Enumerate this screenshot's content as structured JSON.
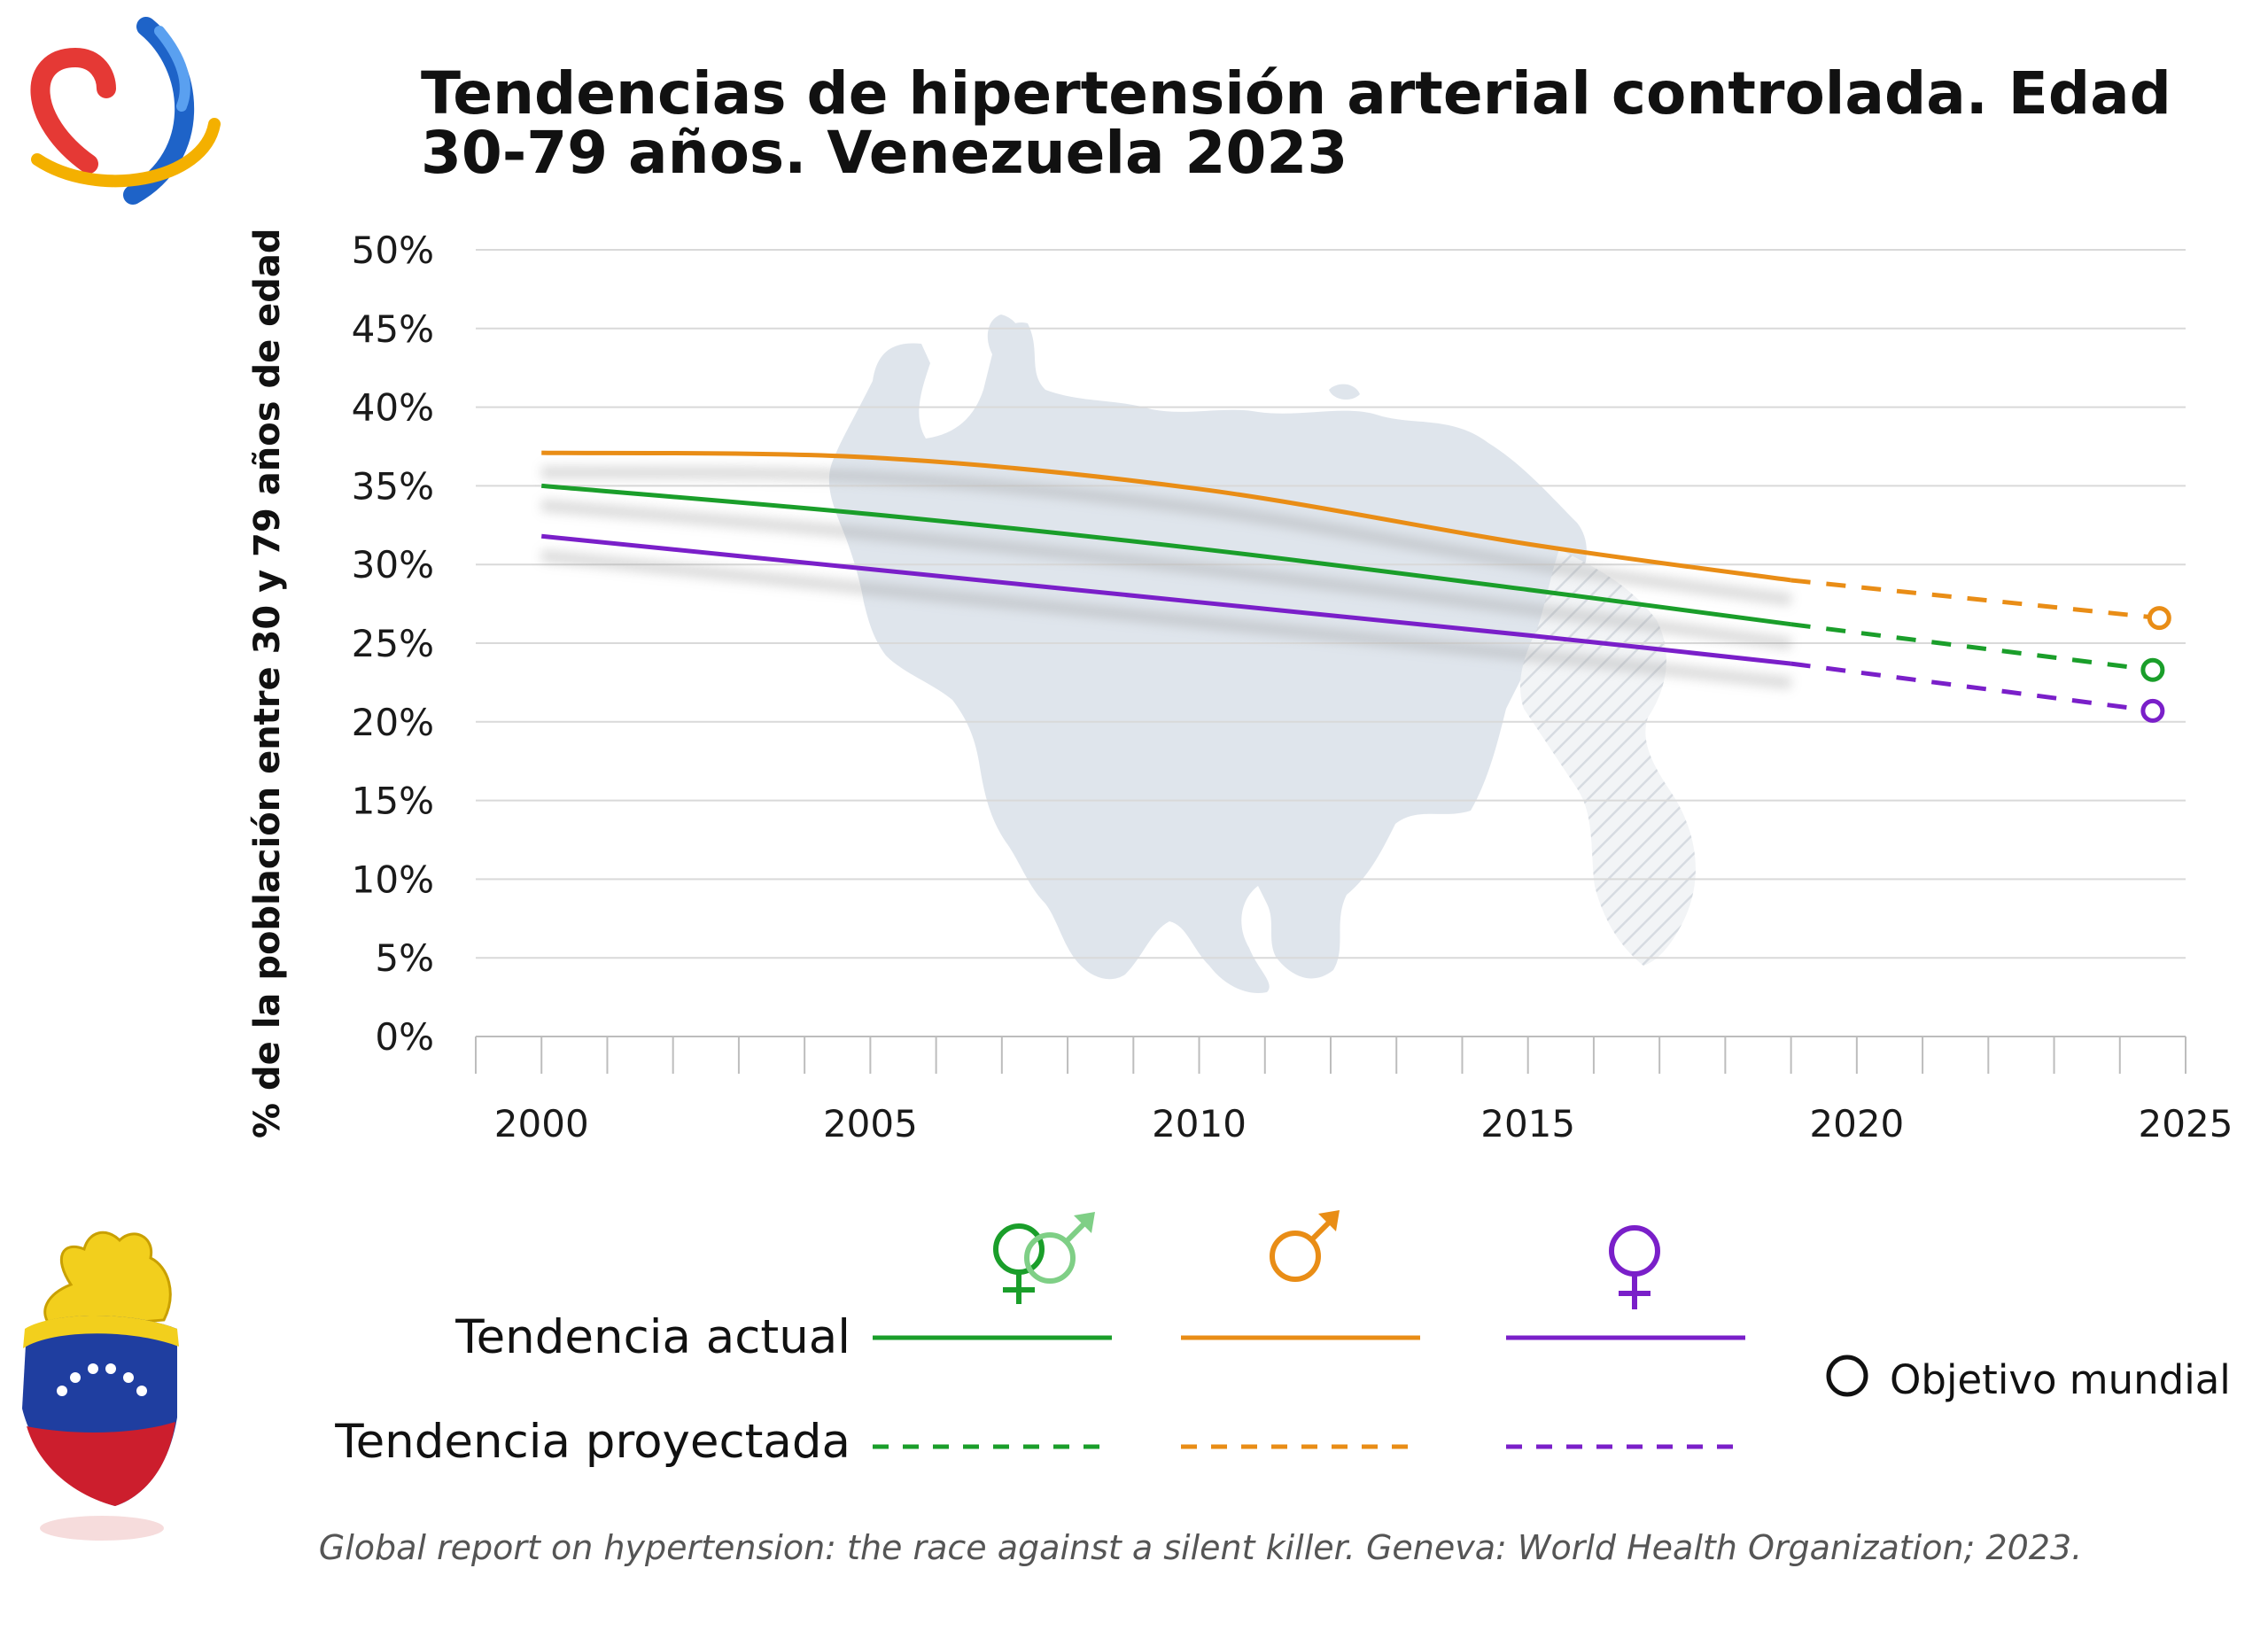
{
  "chart_data": {
    "type": "line",
    "title": "Tendencias de hipertensión arterial controlada. Edad 30-79 años. Venezuela 2023",
    "title_lines": [
      "Tendencias de hipertensión arterial controlada. Edad",
      "30-79 años. Venezuela 2023"
    ],
    "ylabel": "% de la población entre 30 y 79 años de edad",
    "xlabel": "",
    "xlim": [
      1999,
      2025
    ],
    "ylim": [
      0,
      50
    ],
    "x_ticks": [
      "2000",
      "2005",
      "2010",
      "2015",
      "2020",
      "2025"
    ],
    "y_ticks": [
      "0%",
      "5%",
      "10%",
      "15%",
      "20%",
      "25%",
      "30%",
      "35%",
      "40%",
      "45%",
      "50%"
    ],
    "grid": true,
    "series": [
      {
        "key": "ambos",
        "color": "#1a9e2a",
        "actual": {
          "x": [
            2000,
            2005,
            2010,
            2015,
            2019
          ],
          "y": [
            35.0,
            33.2,
            31.0,
            28.4,
            26.2
          ]
        },
        "projected": {
          "x": [
            2019,
            2024.5
          ],
          "y": [
            26.2,
            23.3
          ]
        },
        "target": {
          "x": 2024.5,
          "y": 23.3
        }
      },
      {
        "key": "hombres",
        "color": "#e98d16",
        "actual": {
          "x": [
            2000,
            2005,
            2010,
            2015,
            2019
          ],
          "y": [
            37.1,
            36.8,
            34.8,
            31.3,
            29.0
          ]
        },
        "projected": {
          "x": [
            2019,
            2024.6
          ],
          "y": [
            29.0,
            26.6
          ]
        },
        "target": {
          "x": 2024.6,
          "y": 26.6
        }
      },
      {
        "key": "mujeres",
        "color": "#7a1fc9",
        "actual": {
          "x": [
            2000,
            2005,
            2010,
            2015,
            2019
          ],
          "y": [
            31.8,
            29.7,
            27.6,
            25.5,
            23.7
          ]
        },
        "projected": {
          "x": [
            2019,
            2024.5
          ],
          "y": [
            23.7,
            20.7
          ]
        },
        "target": {
          "x": 2024.5,
          "y": 20.7
        }
      }
    ],
    "legend": {
      "actual_label": "Tendencia actual",
      "projected_label": "Tendencia proyectada",
      "target_label": "Objetivo mundial",
      "placement": "bottom"
    }
  },
  "source": "Global report on hypertension: the race against a silent killer. Geneva: World Health Organization; 2023.",
  "icons": {
    "logo": "heart-hands-logo-icon",
    "heart": "venezuela-flag-heart-icon",
    "both": "male-female-symbol-icon",
    "male": "male-symbol-icon",
    "female": "female-symbol-icon",
    "map": "venezuela-map-icon"
  },
  "colors": {
    "grid": "#d9d9d9",
    "map": "#dfe5ec"
  }
}
